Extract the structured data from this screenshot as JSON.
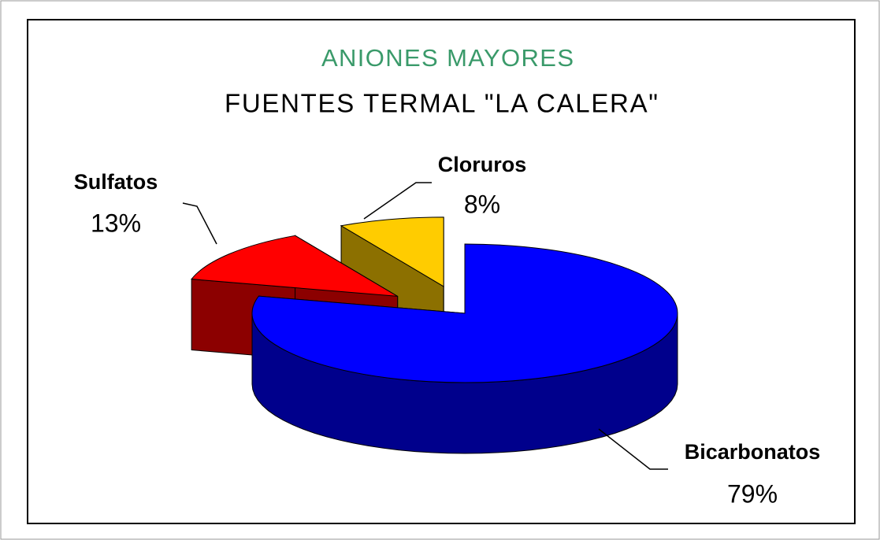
{
  "chart_data": {
    "type": "pie",
    "title": "ANIONES MAYORES",
    "subtitle": "FUENTES TERMAL \"LA CALERA\"",
    "categories": [
      "Bicarbonatos",
      "Sulfatos",
      "Cloruros"
    ],
    "values": [
      79,
      13,
      8
    ],
    "value_labels": [
      "79%",
      "13%",
      "8%"
    ],
    "colors": [
      "#0000ff",
      "#ff0000",
      "#ffcc00"
    ],
    "exploded": [
      false,
      true,
      true
    ]
  }
}
